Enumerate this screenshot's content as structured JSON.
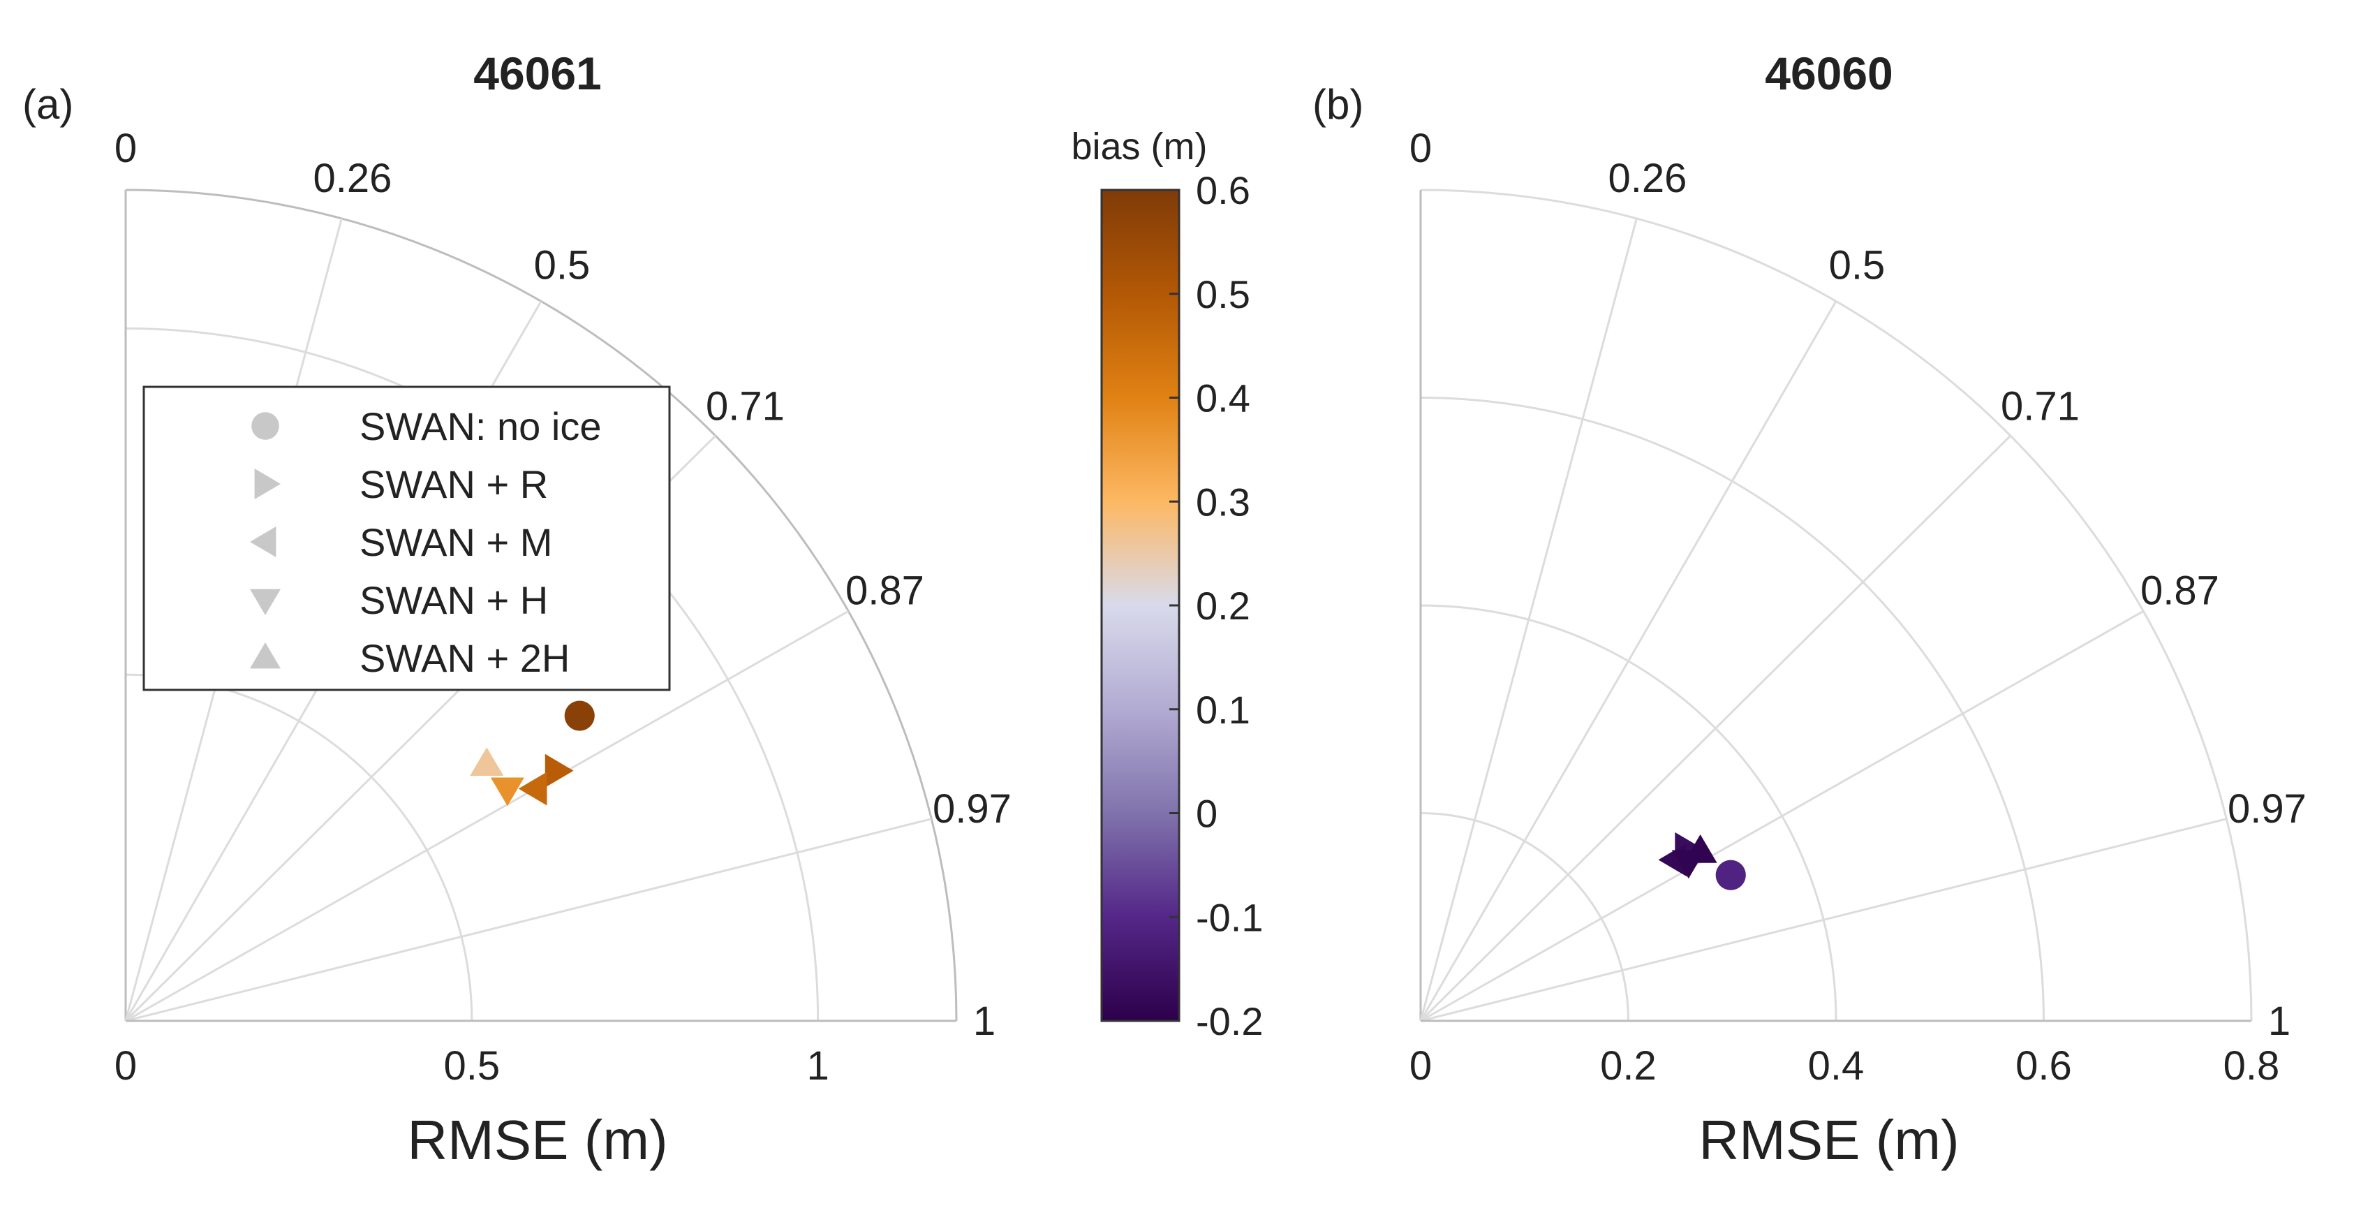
{
  "chart_data": [
    {
      "panel_label": "(a)",
      "type": "scatter",
      "subtype": "polar-taylor",
      "title": "46061",
      "xlabel": "RMSE (m)",
      "rmax": 1.2,
      "radial_ticks": [
        0,
        0.5,
        1
      ],
      "radial_tick_labels": [
        "0",
        "0.5",
        "1"
      ],
      "correlation_ticks": [
        0,
        0.26,
        0.5,
        0.71,
        0.87,
        0.97,
        1
      ],
      "correlation_tick_labels": [
        "0",
        "0.26",
        "0.5",
        "0.71",
        "0.87",
        "0.97",
        "1"
      ],
      "grid": true,
      "legend": {
        "placement": "upper-left",
        "entries": [
          {
            "marker": "circle",
            "label": "SWAN: no ice"
          },
          {
            "marker": "triangle-right",
            "label": "SWAN + R"
          },
          {
            "marker": "triangle-left",
            "label": "SWAN + M"
          },
          {
            "marker": "triangle-down",
            "label": "SWAN + H"
          },
          {
            "marker": "triangle-up",
            "label": "SWAN + 2H"
          }
        ]
      },
      "points": [
        {
          "marker": "circle",
          "rmse": 0.79,
          "correlation": 0.83,
          "bias": 0.58
        },
        {
          "marker": "triangle-right",
          "rmse": 0.72,
          "correlation": 0.865,
          "bias": 0.49
        },
        {
          "marker": "triangle-left",
          "rmse": 0.68,
          "correlation": 0.87,
          "bias": 0.46
        },
        {
          "marker": "triangle-down",
          "rmse": 0.645,
          "correlation": 0.855,
          "bias": 0.37
        },
        {
          "marker": "triangle-up",
          "rmse": 0.64,
          "correlation": 0.815,
          "bias": 0.26
        }
      ]
    },
    {
      "panel_label": "(b)",
      "type": "scatter",
      "subtype": "polar-taylor",
      "title": "46060",
      "xlabel": "RMSE (m)",
      "rmax": 0.8,
      "radial_ticks": [
        0,
        0.2,
        0.4,
        0.6,
        0.8
      ],
      "radial_tick_labels": [
        "0",
        "0.2",
        "0.4",
        "0.6",
        "0.8"
      ],
      "correlation_ticks": [
        0,
        0.26,
        0.5,
        0.71,
        0.87,
        0.97,
        1
      ],
      "correlation_tick_labels": [
        "0",
        "0.26",
        "0.5",
        "0.71",
        "0.87",
        "0.97",
        "1"
      ],
      "grid": true,
      "points": [
        {
          "marker": "circle",
          "rmse": 0.33,
          "correlation": 0.905,
          "bias": -0.11
        },
        {
          "marker": "triangle-right",
          "rmse": 0.305,
          "correlation": 0.84,
          "bias": -0.17
        },
        {
          "marker": "triangle-left",
          "rmse": 0.29,
          "correlation": 0.845,
          "bias": -0.18
        },
        {
          "marker": "triangle-down",
          "rmse": 0.3,
          "correlation": 0.86,
          "bias": -0.19
        },
        {
          "marker": "triangle-up",
          "rmse": 0.315,
          "correlation": 0.855,
          "bias": -0.19
        }
      ]
    }
  ],
  "colorbar": {
    "title": "bias (m)",
    "min": -0.2,
    "max": 0.6,
    "ticks": [
      -0.2,
      -0.1,
      0,
      0.1,
      0.2,
      0.3,
      0.4,
      0.5,
      0.6
    ],
    "tick_labels": [
      "-0.2",
      "-0.1",
      "0",
      "0.1",
      "0.2",
      "0.3",
      "0.4",
      "0.5",
      "0.6"
    ],
    "colormap": [
      "#2d004b",
      "#542788",
      "#8073ac",
      "#b2abd2",
      "#d8daeb",
      "#f7f7f7",
      "#fee0b6",
      "#fdb863",
      "#e08214",
      "#b35806",
      "#7f3b08"
    ],
    "colormap_used_stops": [
      2,
      3,
      4,
      5,
      6,
      7,
      8,
      9,
      10
    ],
    "colormap_display": [
      "#2d004b",
      "#542788",
      "#8073ac",
      "#b2abd2",
      "#d8daeb",
      "#fdb863",
      "#e08214",
      "#b35806",
      "#7f3b08"
    ]
  },
  "colors": {
    "grid": "#dcdcdc",
    "axis": "#bdbdbd",
    "legend_marker": "#c8c8c8",
    "text": "#222222"
  }
}
